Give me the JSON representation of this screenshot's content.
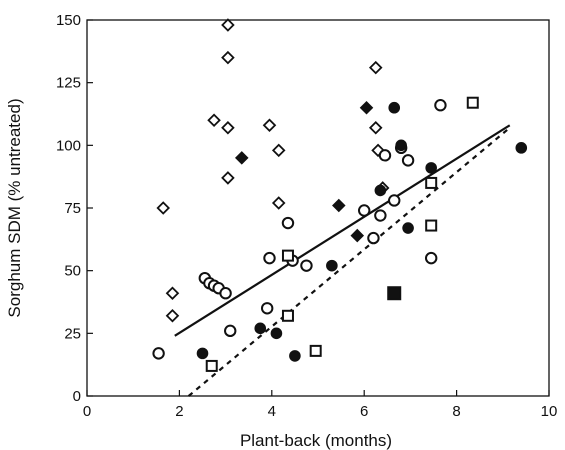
{
  "chart_data": {
    "type": "scatter",
    "title": "",
    "xlabel": "Plant-back (months)",
    "ylabel": "Sorghum SDM (% untreated)",
    "xlim": [
      0,
      10
    ],
    "ylim": [
      0,
      150
    ],
    "xticks": [
      0,
      2,
      4,
      6,
      8,
      10
    ],
    "yticks": [
      0,
      25,
      50,
      75,
      100,
      125,
      150
    ],
    "grid": false,
    "legend": "none",
    "series": [
      {
        "marker": "open-diamond",
        "color": "#111111",
        "points": [
          [
            1.65,
            75
          ],
          [
            1.85,
            41
          ],
          [
            1.85,
            32
          ],
          [
            2.75,
            110
          ],
          [
            3.05,
            148
          ],
          [
            3.05,
            135
          ],
          [
            3.05,
            107
          ],
          [
            3.05,
            87
          ],
          [
            3.95,
            108
          ],
          [
            4.15,
            98
          ],
          [
            4.15,
            77
          ],
          [
            6.25,
            131
          ],
          [
            6.25,
            107
          ],
          [
            6.3,
            98
          ],
          [
            6.4,
            83
          ]
        ]
      },
      {
        "marker": "filled-diamond",
        "color": "#111111",
        "points": [
          [
            3.35,
            95
          ],
          [
            5.45,
            76
          ],
          [
            5.85,
            64
          ],
          [
            6.05,
            115
          ]
        ]
      },
      {
        "marker": "open-circle",
        "color": "#111111",
        "points": [
          [
            1.55,
            17
          ],
          [
            2.55,
            47
          ],
          [
            2.65,
            45
          ],
          [
            2.75,
            44
          ],
          [
            2.85,
            43
          ],
          [
            3.0,
            41
          ],
          [
            3.1,
            26
          ],
          [
            3.9,
            35
          ],
          [
            3.95,
            55
          ],
          [
            4.35,
            69
          ],
          [
            4.45,
            54
          ],
          [
            4.75,
            52
          ],
          [
            6.0,
            74
          ],
          [
            6.2,
            63
          ],
          [
            6.35,
            72
          ],
          [
            6.45,
            96
          ],
          [
            6.65,
            78
          ],
          [
            6.8,
            99
          ],
          [
            6.95,
            94
          ],
          [
            7.45,
            55
          ],
          [
            7.65,
            116
          ]
        ]
      },
      {
        "marker": "filled-circle",
        "color": "#111111",
        "points": [
          [
            2.5,
            17
          ],
          [
            3.75,
            27
          ],
          [
            4.1,
            25
          ],
          [
            4.5,
            16
          ],
          [
            5.3,
            52
          ],
          [
            6.35,
            82
          ],
          [
            6.65,
            115
          ],
          [
            6.8,
            100
          ],
          [
            6.95,
            67
          ],
          [
            7.45,
            91
          ],
          [
            9.4,
            99
          ]
        ]
      },
      {
        "marker": "open-square",
        "color": "#111111",
        "points": [
          [
            2.7,
            12
          ],
          [
            4.35,
            32
          ],
          [
            4.35,
            56
          ],
          [
            4.95,
            18
          ],
          [
            7.45,
            85
          ],
          [
            7.45,
            68
          ],
          [
            8.35,
            117
          ]
        ]
      },
      {
        "marker": "filled-square",
        "color": "#111111",
        "points": [
          [
            6.65,
            41
          ]
        ]
      }
    ],
    "lines": [
      {
        "style": "solid",
        "color": "#111111",
        "x": [
          1.9,
          9.15
        ],
        "y": [
          24,
          108
        ]
      },
      {
        "style": "dashed",
        "color": "#111111",
        "x": [
          2.2,
          9.15
        ],
        "y": [
          0,
          107
        ]
      }
    ]
  }
}
